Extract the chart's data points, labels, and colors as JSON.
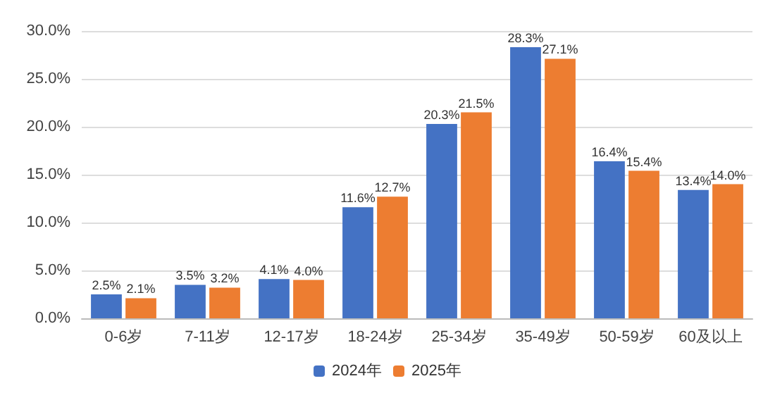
{
  "chart_data": {
    "type": "bar",
    "categories": [
      "0-6岁",
      "7-11岁",
      "12-17岁",
      "18-24岁",
      "25-34岁",
      "35-49岁",
      "50-59岁",
      "60及以上"
    ],
    "series": [
      {
        "name": "2024年",
        "color": "#4472c4",
        "values": [
          2.5,
          3.5,
          4.1,
          11.6,
          20.3,
          28.3,
          16.4,
          13.4
        ],
        "value_labels": [
          "2.5%",
          "3.5%",
          "4.1%",
          "11.6%",
          "20.3%",
          "28.3%",
          "16.4%",
          "13.4%"
        ]
      },
      {
        "name": "2025年",
        "color": "#ed7d31",
        "values": [
          2.1,
          3.2,
          4.0,
          12.7,
          21.5,
          27.1,
          15.4,
          14.0
        ],
        "value_labels": [
          "2.1%",
          "3.2%",
          "4.0%",
          "12.7%",
          "21.5%",
          "27.1%",
          "15.4%",
          "14.0%"
        ]
      }
    ],
    "ylim": [
      0,
      30
    ],
    "yticks": [
      {
        "value": 0,
        "label": "0.0%"
      },
      {
        "value": 5,
        "label": "5.0%"
      },
      {
        "value": 10,
        "label": "10.0%"
      },
      {
        "value": 15,
        "label": "15.0%"
      },
      {
        "value": 20,
        "label": "20.0%"
      },
      {
        "value": 25,
        "label": "25.0%"
      },
      {
        "value": 30,
        "label": "30.0%"
      }
    ],
    "grid": "y",
    "legend": "bottom"
  }
}
